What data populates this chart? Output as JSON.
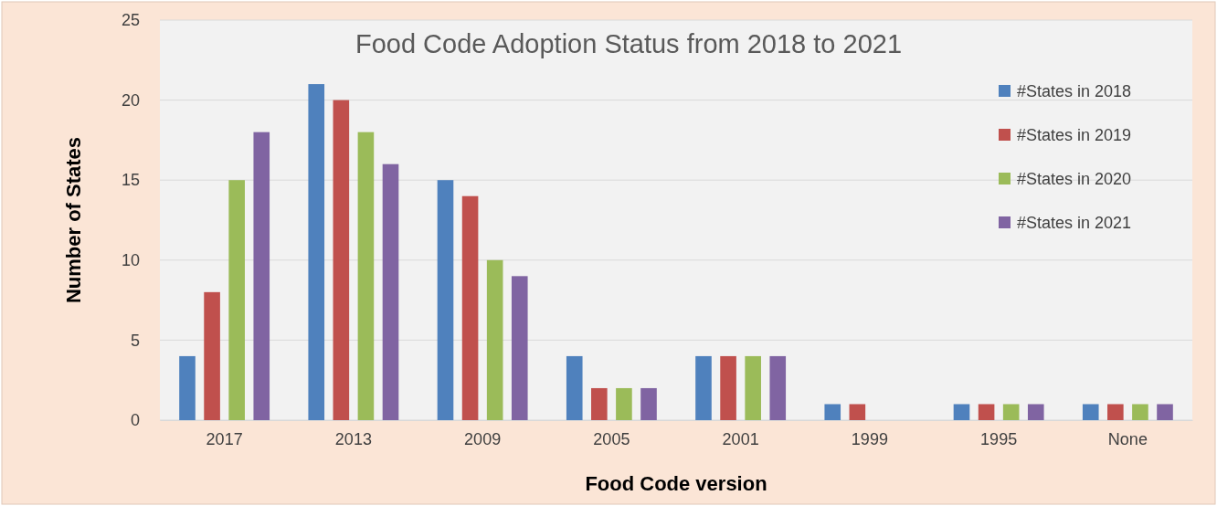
{
  "chart_data": {
    "type": "bar",
    "title": "Food Code Adoption Status from 2018 to 2021",
    "xlabel": "Food Code version",
    "ylabel": "Number of States",
    "categories": [
      "2017",
      "2013",
      "2009",
      "2005",
      "2001",
      "1999",
      "1995",
      "None"
    ],
    "series": [
      {
        "name": "#States in 2018",
        "color": "#4f81bd",
        "values": [
          4,
          21,
          15,
          4,
          4,
          1,
          1,
          1
        ]
      },
      {
        "name": "#States in 2019",
        "color": "#c0504d",
        "values": [
          8,
          20,
          14,
          2,
          4,
          1,
          1,
          1
        ]
      },
      {
        "name": "#States in 2020",
        "color": "#9bbb59",
        "values": [
          15,
          18,
          10,
          2,
          4,
          0,
          1,
          1
        ]
      },
      {
        "name": "#States in 2021",
        "color": "#8064a2",
        "values": [
          18,
          16,
          9,
          2,
          4,
          0,
          1,
          1
        ]
      }
    ],
    "ylim": [
      0,
      25
    ],
    "yticks": [
      0,
      5,
      10,
      15,
      20,
      25
    ],
    "grid": "y",
    "legend": "top right"
  }
}
